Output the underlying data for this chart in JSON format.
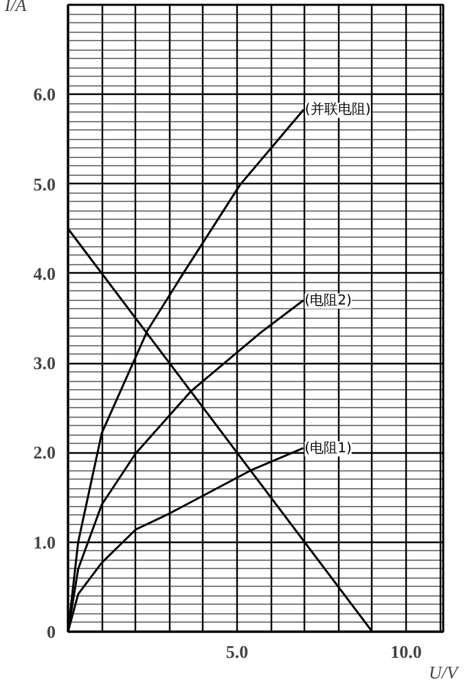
{
  "chart_data": {
    "type": "line",
    "xlabel": "U/V",
    "ylabel": "I/A",
    "xlim": [
      0,
      11.1
    ],
    "ylim": [
      0,
      7.0
    ],
    "xticks": [
      {
        "value": 0,
        "label": null
      },
      {
        "value": 1,
        "label": null
      },
      {
        "value": 2,
        "label": null
      },
      {
        "value": 3,
        "label": null
      },
      {
        "value": 4,
        "label": null
      },
      {
        "value": 5,
        "label": "5.0"
      },
      {
        "value": 6,
        "label": null
      },
      {
        "value": 7,
        "label": null
      },
      {
        "value": 8,
        "label": null
      },
      {
        "value": 9,
        "label": null
      },
      {
        "value": 10,
        "label": "10.0"
      },
      {
        "value": 11,
        "label": null
      }
    ],
    "yticks": [
      0,
      {
        "value": 1,
        "label": "1.0"
      },
      {
        "value": 2,
        "label": "2.0"
      },
      {
        "value": 3,
        "label": "3.0"
      },
      {
        "value": 4,
        "label": "4.0"
      },
      {
        "value": 5,
        "label": "5.0"
      },
      {
        "value": 6,
        "label": "6.0"
      }
    ],
    "grid": true,
    "marker": "none",
    "line_style": "solid",
    "series": [
      {
        "name": "(并联电阻)",
        "color": "#000000",
        "x": [
          0,
          0.3,
          1.0,
          2.36,
          3.39,
          5.09,
          6.97
        ],
        "values": [
          0,
          1.0,
          2.22,
          3.37,
          3.99,
          4.99,
          5.83
        ]
      },
      {
        "name": "(电阻2)",
        "color": "#000000",
        "x": [
          0,
          0.3,
          1.0,
          2.0,
          3.65,
          5.7,
          6.96
        ],
        "values": [
          0,
          0.7,
          1.42,
          1.99,
          2.69,
          3.34,
          3.7
        ]
      },
      {
        "name": "(电阻1)",
        "color": "#000000",
        "x": [
          0,
          0.3,
          1.0,
          2.0,
          3.0,
          4.0,
          5.4,
          6.96
        ],
        "values": [
          0,
          0.42,
          0.77,
          1.14,
          1.32,
          1.52,
          1.8,
          2.05
        ]
      },
      {
        "color": "#000000",
        "x": [
          0,
          9.0
        ],
        "values": [
          4.5,
          0
        ]
      }
    ]
  }
}
